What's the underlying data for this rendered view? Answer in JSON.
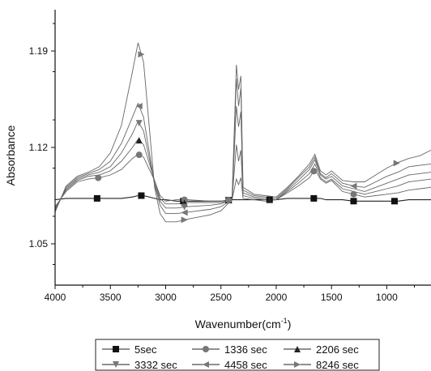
{
  "chart_data": {
    "type": "line",
    "title": "",
    "xlabel": "Wavenumber(cm",
    "xlabel_sup": "-1",
    "xlabel_close": ")",
    "ylabel": "Absorbance",
    "x_reversed": true,
    "xlim": [
      4000,
      600
    ],
    "ylim": [
      1.02,
      1.22
    ],
    "xticks": [
      4000,
      3500,
      3000,
      2500,
      2000,
      1500,
      1000
    ],
    "xtick_labels": [
      "4000",
      "3500",
      "3000",
      "2500",
      "2000",
      "1500",
      "1000"
    ],
    "yticks": [
      1.05,
      1.12,
      1.19
    ],
    "ytick_labels": [
      "1.05",
      "1.12",
      "1.19"
    ],
    "grid": false,
    "legend_position": "bottom",
    "x": [
      4000,
      3900,
      3800,
      3700,
      3600,
      3500,
      3400,
      3300,
      3250,
      3200,
      3100,
      3050,
      3000,
      2900,
      2800,
      2600,
      2500,
      2400,
      2360,
      2340,
      2320,
      2300,
      2200,
      2100,
      2000,
      1900,
      1800,
      1700,
      1650,
      1600,
      1550,
      1500,
      1400,
      1300,
      1200,
      1100,
      1000,
      900,
      800,
      700,
      600
    ],
    "series": [
      {
        "name": "5sec",
        "marker": "square",
        "marker_x": [
          3620,
          3220,
          2840,
          2430,
          2060,
          1660,
          1300,
          930
        ],
        "values": [
          1.082,
          1.083,
          1.083,
          1.083,
          1.083,
          1.083,
          1.083,
          1.084,
          1.085,
          1.085,
          1.083,
          1.082,
          1.082,
          1.081,
          1.081,
          1.081,
          1.081,
          1.082,
          1.082,
          1.082,
          1.082,
          1.082,
          1.082,
          1.082,
          1.082,
          1.083,
          1.083,
          1.083,
          1.083,
          1.083,
          1.082,
          1.082,
          1.082,
          1.081,
          1.081,
          1.081,
          1.081,
          1.081,
          1.082,
          1.082,
          1.082
        ]
      },
      {
        "name": "1336 sec",
        "marker": "circle",
        "marker_x": [
          3610,
          3240,
          2830,
          2430,
          1660,
          1300
        ],
        "values": [
          1.077,
          1.088,
          1.095,
          1.097,
          1.098,
          1.1,
          1.104,
          1.112,
          1.115,
          1.113,
          1.096,
          1.085,
          1.081,
          1.082,
          1.082,
          1.081,
          1.081,
          1.082,
          1.097,
          1.093,
          1.098,
          1.083,
          1.082,
          1.081,
          1.082,
          1.087,
          1.092,
          1.098,
          1.104,
          1.097,
          1.094,
          1.096,
          1.088,
          1.086,
          1.084,
          1.085,
          1.086,
          1.087,
          1.089,
          1.09,
          1.091
        ]
      },
      {
        "name": "2206 sec",
        "marker": "triangle-up",
        "marker_x": [
          3240,
          2830,
          2060
        ],
        "values": [
          1.076,
          1.089,
          1.096,
          1.099,
          1.1,
          1.103,
          1.11,
          1.12,
          1.126,
          1.122,
          1.096,
          1.083,
          1.079,
          1.079,
          1.08,
          1.08,
          1.08,
          1.082,
          1.122,
          1.11,
          1.118,
          1.085,
          1.083,
          1.082,
          1.082,
          1.088,
          1.094,
          1.101,
          1.108,
          1.098,
          1.095,
          1.097,
          1.09,
          1.088,
          1.086,
          1.088,
          1.09,
          1.092,
          1.095,
          1.096,
          1.097
        ]
      },
      {
        "name": "3332 sec",
        "marker": "triangle-down",
        "marker_x": [
          3240,
          2830
        ],
        "values": [
          1.075,
          1.09,
          1.097,
          1.1,
          1.102,
          1.106,
          1.116,
          1.13,
          1.139,
          1.132,
          1.094,
          1.081,
          1.076,
          1.076,
          1.077,
          1.078,
          1.079,
          1.082,
          1.15,
          1.135,
          1.146,
          1.087,
          1.084,
          1.083,
          1.082,
          1.089,
          1.096,
          1.104,
          1.111,
          1.1,
          1.097,
          1.099,
          1.092,
          1.09,
          1.088,
          1.091,
          1.094,
          1.097,
          1.1,
          1.101,
          1.102
        ]
      },
      {
        "name": "4458 sec",
        "marker": "triangle-left",
        "marker_x": [
          3240,
          2830,
          1300
        ],
        "values": [
          1.074,
          1.091,
          1.098,
          1.101,
          1.104,
          1.11,
          1.123,
          1.142,
          1.152,
          1.142,
          1.093,
          1.078,
          1.072,
          1.072,
          1.073,
          1.075,
          1.077,
          1.082,
          1.17,
          1.15,
          1.163,
          1.089,
          1.085,
          1.084,
          1.083,
          1.09,
          1.098,
          1.106,
          1.113,
          1.101,
          1.098,
          1.101,
          1.094,
          1.092,
          1.091,
          1.095,
          1.099,
          1.102,
          1.106,
          1.107,
          1.108
        ]
      },
      {
        "name": "8246 sec",
        "marker": "triangle-right",
        "marker_x": [
          3220,
          2830,
          910
        ],
        "values": [
          1.073,
          1.092,
          1.099,
          1.102,
          1.106,
          1.116,
          1.136,
          1.175,
          1.196,
          1.182,
          1.091,
          1.072,
          1.066,
          1.066,
          1.068,
          1.071,
          1.074,
          1.082,
          1.18,
          1.162,
          1.172,
          1.091,
          1.086,
          1.085,
          1.084,
          1.091,
          1.099,
          1.108,
          1.115,
          1.103,
          1.1,
          1.103,
          1.096,
          1.095,
          1.095,
          1.1,
          1.105,
          1.109,
          1.112,
          1.114,
          1.118
        ]
      }
    ]
  }
}
